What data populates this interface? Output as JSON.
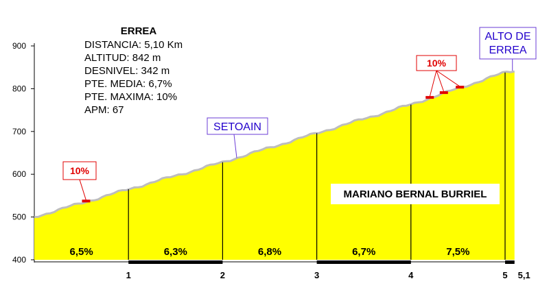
{
  "chart_data": {
    "type": "area",
    "title": "ERREA",
    "ylim": [
      400,
      900
    ],
    "xlim": [
      0,
      5.1
    ],
    "y_ticks": [
      "400",
      "500",
      "600",
      "700",
      "800",
      "900"
    ],
    "x_ticks": [
      {
        "value": 1,
        "label": "1"
      },
      {
        "value": 2,
        "label": "2"
      },
      {
        "value": 3,
        "label": "3"
      },
      {
        "value": 4,
        "label": "4"
      },
      {
        "value": 5,
        "label": "5"
      },
      {
        "value": 5.1,
        "label": "5,1"
      }
    ],
    "profile": [
      {
        "km": 0,
        "alt": 500
      },
      {
        "km": 1,
        "alt": 565
      },
      {
        "km": 2,
        "alt": 628
      },
      {
        "km": 3,
        "alt": 696
      },
      {
        "km": 4,
        "alt": 763
      },
      {
        "km": 5,
        "alt": 838
      },
      {
        "km": 5.1,
        "alt": 842
      }
    ],
    "segments": [
      {
        "from": 0,
        "to": 1,
        "grade": "6,5%"
      },
      {
        "from": 1,
        "to": 2,
        "grade": "6,3%"
      },
      {
        "from": 2,
        "to": 3,
        "grade": "6,8%"
      },
      {
        "from": 3,
        "to": 4,
        "grade": "6,7%"
      },
      {
        "from": 4,
        "to": 5,
        "grade": "7,5%"
      }
    ],
    "info_lines": [
      "DISTANCIA: 5,10 Km",
      "ALTITUD: 842 m",
      "DESNIVEL: 342 m",
      "PTE. MEDIA: 6,7%",
      "PTE. MAXIMA: 10%",
      "APM: 67"
    ],
    "places": [
      {
        "name": "SETOAIN",
        "km": 2.15
      },
      {
        "name_line1": "ALTO DE",
        "name_line2": "ERREA",
        "km": 5.1
      }
    ],
    "steep_labels": [
      {
        "label": "10%",
        "markers_km": [
          0.55
        ]
      },
      {
        "label": "10%",
        "markers_km": [
          4.2,
          4.35,
          4.52
        ]
      }
    ],
    "author": "MARIANO BERNAL BURRIEL",
    "colors": {
      "fill": "#ffff00",
      "profile_edge": "#bdbdbd",
      "place_text": "#2200cc",
      "place_box": "#6a3bd6",
      "steep_text": "#e00000",
      "steep_box": "#e00000"
    }
  }
}
